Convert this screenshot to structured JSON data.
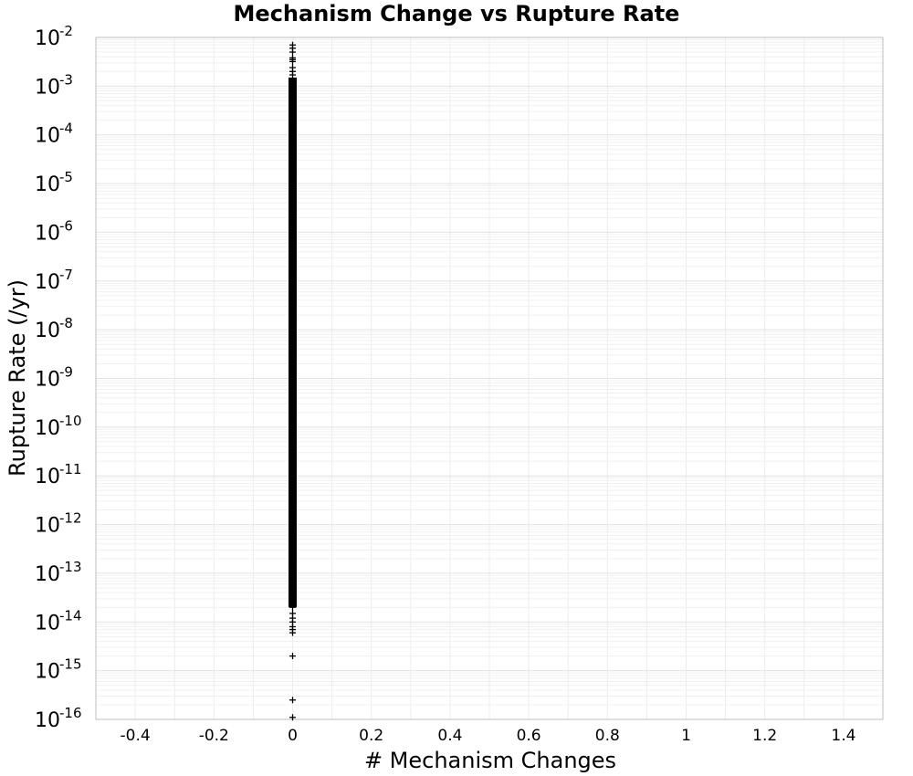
{
  "chart_data": {
    "type": "scatter",
    "title": "Mechanism Change vs Rupture Rate",
    "xlabel": "# Mechanism Changes",
    "ylabel": "Rupture Rate (/yr)",
    "xlim": [
      -0.5,
      1.5
    ],
    "ylim": [
      1e-16,
      0.01
    ],
    "yscale": "log",
    "grid": true,
    "marker": "+",
    "marker_color": "#000000",
    "x_ticks": [
      "-0.4",
      "-0.2",
      "0",
      "0.2",
      "0.4",
      "0.6",
      "0.8",
      "1",
      "1.2",
      "1.4"
    ],
    "y_tick_base": "10",
    "y_tick_exponents": [
      "-2",
      "-3",
      "-4",
      "-5",
      "-6",
      "-7",
      "-8",
      "-9",
      "-10",
      "-11",
      "-12",
      "-13",
      "-14",
      "-15",
      "-16"
    ],
    "dense_band": {
      "x": 0,
      "y_min": 2e-14,
      "y_max": 0.0015
    },
    "points": [
      {
        "x": 0,
        "y": 0.007
      },
      {
        "x": 0,
        "y": 0.006
      },
      {
        "x": 0,
        "y": 0.005
      },
      {
        "x": 0,
        "y": 0.0038
      },
      {
        "x": 0,
        "y": 0.0035
      },
      {
        "x": 0,
        "y": 0.0032
      },
      {
        "x": 0,
        "y": 0.0024
      },
      {
        "x": 0,
        "y": 0.002
      },
      {
        "x": 0,
        "y": 0.0017
      },
      {
        "x": 0,
        "y": 2e-14
      },
      {
        "x": 0,
        "y": 1.5e-14
      },
      {
        "x": 0,
        "y": 1.2e-14
      },
      {
        "x": 0,
        "y": 1e-14
      },
      {
        "x": 0,
        "y": 8e-15
      },
      {
        "x": 0,
        "y": 7e-15
      },
      {
        "x": 0,
        "y": 6e-15
      },
      {
        "x": 0,
        "y": 2e-15
      },
      {
        "x": 0,
        "y": 2.5e-16
      },
      {
        "x": 0,
        "y": 1.1e-16
      }
    ]
  }
}
